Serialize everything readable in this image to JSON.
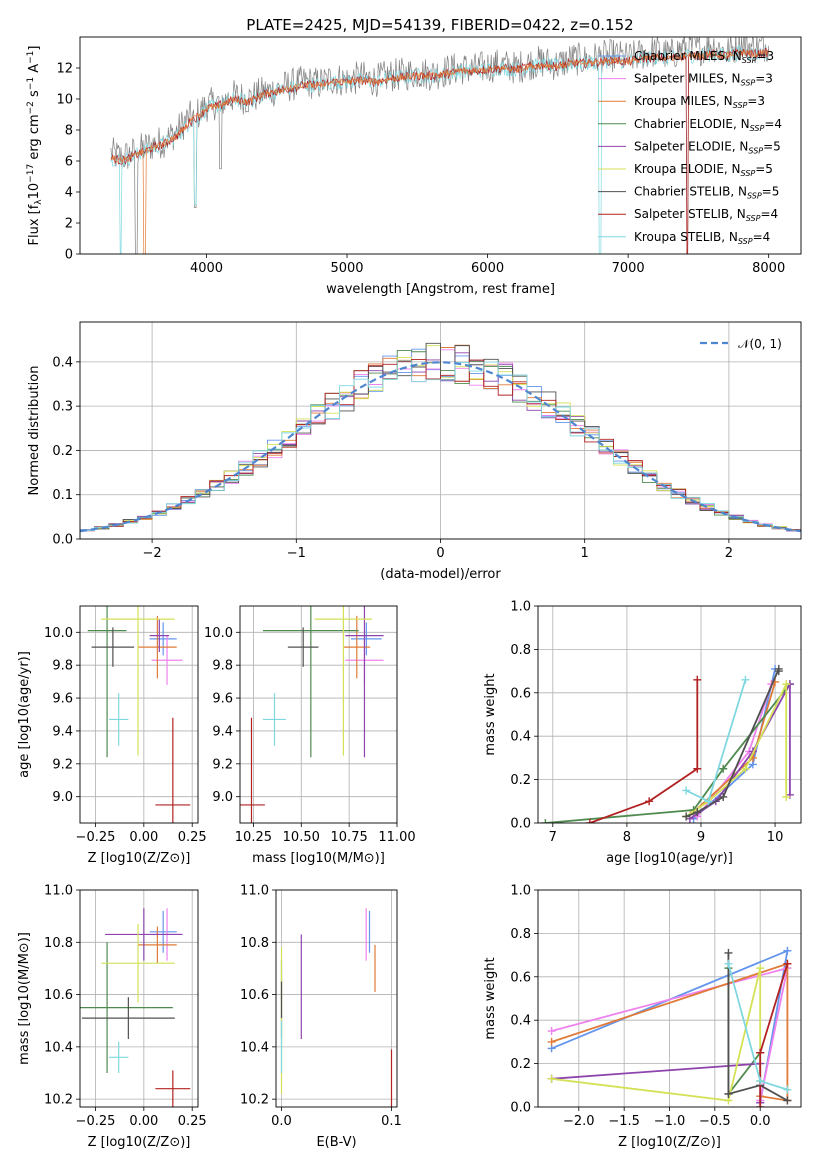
{
  "figure_title": "PLATE=2425, MJD=54139, FIBERID=0422, z=0.152",
  "colors": {
    "Chabrier MILES": "#6495ed",
    "Salpeter MILES": "#ee82ee",
    "Kroupa MILES": "#e07b39",
    "Chabrier ELODIE": "#4f8a4f",
    "Salpeter ELODIE": "#8e44ad",
    "Kroupa ELODIE": "#d4e157",
    "Chabrier STELIB": "#505050",
    "Salpeter STELIB": "#b22222",
    "Kroupa STELIB": "#7fd8e0"
  },
  "chart_data": [
    {
      "id": "spectrum",
      "type": "line",
      "title": "PLATE=2425, MJD=54139, FIBERID=0422, z=0.152",
      "xlabel": "wavelength [Angstrom, rest frame]",
      "ylabel_parts": [
        "Flux [f",
        "λ",
        "10",
        "−17",
        " erg cm",
        "−2",
        " s",
        "−1",
        " A",
        "−1",
        "]"
      ],
      "xlim": [
        3100,
        8230
      ],
      "ylim": [
        0,
        14
      ],
      "xticks": [
        4000,
        5000,
        6000,
        7000,
        8000
      ],
      "yticks": [
        0,
        2,
        4,
        6,
        8,
        10,
        12
      ],
      "grid": false,
      "legend_placement": "right",
      "legend": [
        {
          "name": "Chabrier MILES",
          "nssp": "3"
        },
        {
          "name": "Salpeter MILES",
          "nssp": "3"
        },
        {
          "name": "Kroupa MILES",
          "nssp": "3"
        },
        {
          "name": "Chabrier ELODIE",
          "nssp": "4"
        },
        {
          "name": "Salpeter ELODIE",
          "nssp": "5"
        },
        {
          "name": "Kroupa ELODIE",
          "nssp": "5"
        },
        {
          "name": "Chabrier STELIB",
          "nssp": "5"
        },
        {
          "name": "Salpeter STELIB",
          "nssp": "4"
        },
        {
          "name": "Kroupa STELIB",
          "nssp": "4"
        }
      ],
      "data_spectrum": {
        "x": [
          3320,
          3400,
          3500,
          3600,
          3700,
          3800,
          3850,
          3900,
          3950,
          4000,
          4100,
          4200,
          4300,
          4400,
          4500,
          4600,
          4700,
          4800,
          4900,
          5000,
          5100,
          5200,
          5300,
          5400,
          5500,
          5600,
          5700,
          5800,
          5900,
          6000,
          6100,
          6200,
          6300,
          6400,
          6500,
          6600,
          6700,
          6800,
          6900,
          7000,
          7100,
          7200,
          7300,
          7400,
          7500,
          7600,
          7700,
          7800,
          7900,
          8000
        ],
        "y": [
          6.5,
          6.2,
          6.6,
          7.0,
          7.3,
          8.0,
          8.6,
          8.9,
          9.1,
          9.6,
          9.8,
          10.2,
          10.0,
          10.4,
          10.6,
          10.9,
          11.1,
          11.0,
          11.3,
          11.2,
          11.4,
          11.2,
          11.5,
          11.6,
          11.7,
          11.6,
          11.8,
          12.0,
          11.9,
          12.1,
          12.2,
          12.0,
          12.3,
          12.4,
          12.2,
          12.6,
          12.5,
          12.7,
          12.8,
          12.6,
          12.9,
          13.1,
          12.8,
          13.4,
          13.2,
          13.5,
          13.0,
          13.6,
          13.3,
          13.5
        ]
      },
      "model_spectrum": {
        "x": [
          3320,
          3400,
          3500,
          3600,
          3700,
          3800,
          3850,
          3900,
          3950,
          4000,
          4100,
          4200,
          4300,
          4400,
          4500,
          4600,
          4700,
          4800,
          4900,
          5000,
          5100,
          5200,
          5300,
          5400,
          5500,
          5600,
          5700,
          5800,
          5900,
          6000,
          6100,
          6200,
          6300,
          6400,
          6500,
          6600,
          6700,
          6800,
          6900,
          7000,
          7100,
          7200,
          7300,
          7400,
          7500,
          7600,
          7700,
          7800,
          7900,
          8000
        ],
        "y": [
          6.2,
          6.0,
          6.4,
          6.8,
          7.1,
          7.7,
          8.2,
          8.7,
          8.9,
          9.4,
          9.6,
          10.0,
          9.8,
          10.3,
          10.5,
          10.7,
          10.9,
          10.9,
          11.1,
          11.1,
          11.2,
          11.1,
          11.3,
          11.4,
          11.5,
          11.5,
          11.6,
          11.8,
          11.8,
          11.9,
          12.0,
          11.9,
          12.1,
          12.2,
          12.1,
          12.3,
          12.3,
          12.4,
          12.5,
          12.4,
          12.6,
          12.7,
          12.6,
          12.8,
          12.8,
          12.9,
          12.8,
          13.0,
          12.9,
          13.0
        ]
      }
    },
    {
      "id": "residuals",
      "type": "line",
      "xlabel": "(data-model)/error",
      "ylabel": "Normed distribution",
      "xlim": [
        -2.5,
        2.5
      ],
      "ylim": [
        0,
        0.49
      ],
      "xticks": [
        -2,
        -1,
        0,
        1,
        2
      ],
      "yticks": [
        0.0,
        0.1,
        0.2,
        0.3,
        0.4
      ],
      "grid": true,
      "legend_placement": "top-right",
      "legend_label": "N(0,1)",
      "gaussian": {
        "mu": 0,
        "sigma": 1,
        "color": "#4f86d0"
      }
    },
    {
      "id": "age_vs_Z",
      "type": "scatter",
      "xlabel": "Z [log10(Z/Z⊙)]",
      "ylabel": "age  [log10(age/yr)]",
      "xlim": [
        -0.33,
        0.28
      ],
      "ylim": [
        8.84,
        10.16
      ],
      "xticks": [
        -0.25,
        0.0,
        0.25
      ],
      "xticklabels": [
        "−0.25",
        "0.00",
        "0.25"
      ],
      "yticks": [
        9.0,
        9.2,
        9.4,
        9.6,
        9.8,
        10.0
      ],
      "grid": true,
      "points": [
        {
          "x": 0.1,
          "y": 9.96,
          "xerr": 0.07,
          "yerr": 0.1,
          "c": "#6495ed"
        },
        {
          "x": 0.12,
          "y": 9.83,
          "xerr": 0.08,
          "yerr": 0.15,
          "c": "#ee82ee"
        },
        {
          "x": 0.07,
          "y": 9.91,
          "xerr": 0.1,
          "yerr": 0.19,
          "c": "#e07b39"
        },
        {
          "x": -0.19,
          "y": 10.01,
          "xerr": 0.1,
          "yerr": 0.77,
          "c": "#4f8a4f"
        },
        {
          "x": 0.08,
          "y": 9.98,
          "xerr": 0.05,
          "yerr": 0.1,
          "c": "#8e44ad"
        },
        {
          "x": -0.03,
          "y": 10.08,
          "xerr": 0.19,
          "yerr": 0.83,
          "c": "#d4e157"
        },
        {
          "x": -0.16,
          "y": 9.91,
          "xerr": 0.11,
          "yerr": 0.12,
          "c": "#505050"
        },
        {
          "x": 0.15,
          "y": 8.95,
          "xerr": 0.09,
          "yerr": 0.53,
          "c": "#b22222"
        },
        {
          "x": -0.13,
          "y": 9.47,
          "xerr": 0.05,
          "yerr": 0.16,
          "c": "#7fd8e0"
        }
      ]
    },
    {
      "id": "age_vs_mass",
      "type": "scatter",
      "xlabel": "mass [log10(M/M⊙)]",
      "xlim": [
        10.18,
        11.0
      ],
      "ylim": [
        8.84,
        10.16
      ],
      "xticks": [
        10.25,
        10.5,
        10.75,
        11.0
      ],
      "xticklabels": [
        "10.25",
        "10.50",
        "10.75",
        "11.00"
      ],
      "yticks": [
        9.0,
        9.2,
        9.4,
        9.6,
        9.8,
        10.0
      ],
      "grid": true,
      "points": [
        {
          "x": 10.84,
          "y": 9.96,
          "xerr": 0.08,
          "yerr": 0.1,
          "c": "#6495ed"
        },
        {
          "x": 10.83,
          "y": 9.83,
          "xerr": 0.1,
          "yerr": 0.15,
          "c": "#ee82ee"
        },
        {
          "x": 10.79,
          "y": 9.91,
          "xerr": 0.07,
          "yerr": 0.19,
          "c": "#e07b39"
        },
        {
          "x": 10.55,
          "y": 10.01,
          "xerr": 0.25,
          "yerr": 0.77,
          "c": "#4f8a4f"
        },
        {
          "x": 10.83,
          "y": 9.98,
          "xerr": 0.1,
          "yerr": 0.74,
          "c": "#8e44ad"
        },
        {
          "x": 10.72,
          "y": 10.08,
          "xerr": 0.15,
          "yerr": 0.83,
          "c": "#d4e157"
        },
        {
          "x": 10.51,
          "y": 9.91,
          "xerr": 0.08,
          "yerr": 0.12,
          "c": "#505050"
        },
        {
          "x": 10.24,
          "y": 8.95,
          "xerr": 0.07,
          "yerr": 0.53,
          "c": "#b22222"
        },
        {
          "x": 10.36,
          "y": 9.47,
          "xerr": 0.06,
          "yerr": 0.16,
          "c": "#7fd8e0"
        }
      ]
    },
    {
      "id": "massweight_vs_age",
      "type": "line",
      "xlabel": "age  [log10(age/yr)]",
      "ylabel": "mass weight",
      "xlim": [
        6.8,
        10.35
      ],
      "ylim": [
        0,
        1
      ],
      "xticks": [
        7,
        8,
        9,
        10
      ],
      "yticks": [
        0.0,
        0.2,
        0.4,
        0.6,
        0.8,
        1.0
      ],
      "grid": true,
      "series": [
        {
          "c": "#6495ed",
          "x": [
            8.9,
            9.7,
            10.0
          ],
          "y": [
            0.02,
            0.27,
            0.71
          ]
        },
        {
          "c": "#ee82ee",
          "x": [
            8.95,
            9.65,
            9.95
          ],
          "y": [
            0.03,
            0.33,
            0.64
          ]
        },
        {
          "c": "#e07b39",
          "x": [
            8.9,
            9.7,
            10.0
          ],
          "y": [
            0.05,
            0.3,
            0.65
          ]
        },
        {
          "c": "#4f8a4f",
          "x": [
            6.9,
            8.9,
            9.3,
            10.2
          ],
          "y": [
            0.0,
            0.06,
            0.25,
            0.64
          ]
        },
        {
          "c": "#8e44ad",
          "x": [
            8.85,
            9.2,
            9.7,
            10.2,
            10.2
          ],
          "y": [
            0.02,
            0.1,
            0.33,
            0.64,
            0.13
          ]
        },
        {
          "c": "#d4e157",
          "x": [
            8.8,
            9.1,
            9.6,
            10.15,
            10.15
          ],
          "y": [
            0.03,
            0.1,
            0.25,
            0.64,
            0.12
          ]
        },
        {
          "c": "#505050",
          "x": [
            8.8,
            8.95,
            9.3,
            10.05,
            10.05
          ],
          "y": [
            0.03,
            0.05,
            0.12,
            0.71,
            0.7
          ]
        },
        {
          "c": "#b22222",
          "x": [
            7.5,
            8.3,
            8.95,
            8.95
          ],
          "y": [
            0.0,
            0.1,
            0.25,
            0.66
          ]
        },
        {
          "c": "#7fd8e0",
          "x": [
            8.8,
            9.1,
            9.6
          ],
          "y": [
            0.15,
            0.1,
            0.66
          ]
        }
      ]
    },
    {
      "id": "mass_vs_Z",
      "type": "scatter",
      "xlabel": "Z [log10(Z/Z⊙)]",
      "ylabel": "mass [log10(M/M⊙)]",
      "xlim": [
        -0.33,
        0.28
      ],
      "ylim": [
        10.17,
        11.0
      ],
      "xticks": [
        -0.25,
        0.0,
        0.25
      ],
      "xticklabels": [
        "−0.25",
        "0.00",
        "0.25"
      ],
      "yticks": [
        10.2,
        10.4,
        10.6,
        10.8,
        11.0
      ],
      "grid": true,
      "points": [
        {
          "x": 0.1,
          "y": 10.84,
          "xerr": 0.07,
          "yerr": 0.08,
          "c": "#6495ed"
        },
        {
          "x": 0.12,
          "y": 10.83,
          "xerr": 0.08,
          "yerr": 0.1,
          "c": "#ee82ee"
        },
        {
          "x": 0.07,
          "y": 10.79,
          "xerr": 0.1,
          "yerr": 0.07,
          "c": "#e07b39"
        },
        {
          "x": -0.19,
          "y": 10.55,
          "xerr": 0.34,
          "yerr": 0.25,
          "c": "#4f8a4f"
        },
        {
          "x": 0.0,
          "y": 10.83,
          "xerr": 0.2,
          "yerr": 0.1,
          "c": "#8e44ad"
        },
        {
          "x": -0.03,
          "y": 10.72,
          "xerr": 0.19,
          "yerr": 0.15,
          "c": "#d4e157"
        },
        {
          "x": -0.08,
          "y": 10.51,
          "xerr": 0.24,
          "yerr": 0.08,
          "c": "#505050"
        },
        {
          "x": 0.15,
          "y": 10.24,
          "xerr": 0.09,
          "yerr": 0.07,
          "c": "#b22222"
        },
        {
          "x": -0.13,
          "y": 10.36,
          "xerr": 0.05,
          "yerr": 0.06,
          "c": "#7fd8e0"
        }
      ]
    },
    {
      "id": "mass_vs_EBV",
      "type": "scatter",
      "xlabel": "E(B-V)",
      "xlim": [
        -0.005,
        0.105
      ],
      "ylim": [
        10.17,
        11.0
      ],
      "xticks": [
        0.0,
        0.1
      ],
      "xticklabels": [
        "0.0",
        "0.1"
      ],
      "yticks": [
        10.2,
        10.4,
        10.6,
        10.8,
        11.0
      ],
      "grid": true,
      "points": [
        {
          "x": 0.08,
          "y": 10.84,
          "xerr": 0.0,
          "yerr": 0.08,
          "c": "#6495ed"
        },
        {
          "x": 0.077,
          "y": 10.83,
          "xerr": 0.0,
          "yerr": 0.1,
          "c": "#ee82ee"
        },
        {
          "x": 0.085,
          "y": 10.7,
          "xerr": 0.0,
          "yerr": 0.09,
          "c": "#e07b39"
        },
        {
          "x": 0.0,
          "y": 10.58,
          "xerr": 0.0,
          "yerr": 0.15,
          "c": "#4f8a4f"
        },
        {
          "x": 0.018,
          "y": 10.63,
          "xerr": 0.0,
          "yerr": 0.2,
          "c": "#8e44ad"
        },
        {
          "x": 0.0,
          "y": 10.5,
          "xerr": 0.0,
          "yerr": 0.28,
          "c": "#d4e157"
        },
        {
          "x": 0.0,
          "y": 10.58,
          "xerr": 0.0,
          "yerr": 0.07,
          "c": "#505050"
        },
        {
          "x": 0.1,
          "y": 10.24,
          "xerr": 0.0,
          "yerr": 0.15,
          "c": "#b22222"
        },
        {
          "x": 0.0,
          "y": 10.4,
          "xerr": 0.0,
          "yerr": 0.1,
          "c": "#7fd8e0"
        }
      ]
    },
    {
      "id": "massweight_vs_Z",
      "type": "line",
      "xlabel": "Z [log10(Z/Z⊙)]",
      "ylabel": "mass weight",
      "xlim": [
        -2.45,
        0.45
      ],
      "ylim": [
        0,
        1
      ],
      "xticks": [
        -2.0,
        -1.5,
        -1.0,
        -0.5,
        0.0
      ],
      "xticklabels": [
        "−2.0",
        "−1.5",
        "−1.0",
        "−0.5",
        "0.0"
      ],
      "yticks": [
        0.0,
        0.2,
        0.4,
        0.6,
        0.8,
        1.0
      ],
      "grid": true,
      "series": [
        {
          "c": "#6495ed",
          "x": [
            -2.3,
            0.3,
            0.0
          ],
          "y": [
            0.27,
            0.72,
            0.02
          ]
        },
        {
          "c": "#ee82ee",
          "x": [
            -2.3,
            0.3,
            0.0
          ],
          "y": [
            0.35,
            0.64,
            0.03
          ]
        },
        {
          "c": "#e07b39",
          "x": [
            -2.3,
            0.3,
            0.3,
            0.0
          ],
          "y": [
            0.3,
            0.66,
            0.03,
            0.05
          ]
        },
        {
          "c": "#4f8a4f",
          "x": [
            -0.35,
            -0.35,
            0.0
          ],
          "y": [
            0.64,
            0.06,
            0.25
          ]
        },
        {
          "c": "#8e44ad",
          "x": [
            -2.3,
            0.0,
            0.0
          ],
          "y": [
            0.13,
            0.2,
            0.02
          ]
        },
        {
          "c": "#d4e157",
          "x": [
            -2.3,
            -0.35,
            0.0,
            0.0
          ],
          "y": [
            0.13,
            0.03,
            0.64,
            0.12
          ]
        },
        {
          "c": "#505050",
          "x": [
            -0.35,
            -0.35,
            0.0,
            0.3
          ],
          "y": [
            0.71,
            0.06,
            0.1,
            0.03
          ]
        },
        {
          "c": "#b22222",
          "x": [
            0.0,
            0.0,
            0.3
          ],
          "y": [
            0.0,
            0.25,
            0.66
          ]
        },
        {
          "c": "#7fd8e0",
          "x": [
            -0.35,
            0.0,
            0.3
          ],
          "y": [
            0.66,
            0.12,
            0.08
          ]
        }
      ]
    }
  ]
}
